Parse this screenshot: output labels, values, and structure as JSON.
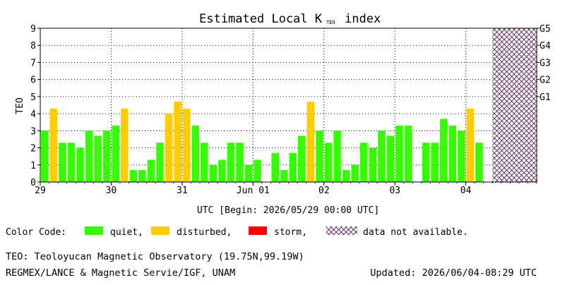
{
  "chart_data": {
    "type": "bar",
    "title": "Estimated Local K",
    "title_subscript": "TEO",
    "title_suffix": "index",
    "ylabel": "TEO",
    "xlabel": "UTC [Begin: 2026/05/29 00:00 UTC]",
    "ylim": [
      0,
      9
    ],
    "y_ticks": [
      "0",
      "1",
      "2",
      "3",
      "4",
      "5",
      "6",
      "7",
      "8",
      "9"
    ],
    "g_levels": [
      {
        "label": "G1",
        "value": 5
      },
      {
        "label": "G2",
        "value": 6
      },
      {
        "label": "G3",
        "value": 7
      },
      {
        "label": "G4",
        "value": 8
      },
      {
        "label": "G5",
        "value": 9
      }
    ],
    "x_ticks": [
      {
        "label": "29",
        "index": 0
      },
      {
        "label": "30",
        "index": 8
      },
      {
        "label": "31",
        "index": 16
      },
      {
        "label": "Jun 01",
        "index": 24
      },
      {
        "label": "02",
        "index": 32
      },
      {
        "label": "03",
        "index": 40
      },
      {
        "label": "04",
        "index": 48
      }
    ],
    "total_slots": 56,
    "values": [
      3,
      4.3,
      2.3,
      2.3,
      2,
      3,
      2.7,
      3,
      3.3,
      4.3,
      0.7,
      0.7,
      1.3,
      2.3,
      4,
      4.7,
      4.3,
      3.3,
      2.3,
      1,
      1.3,
      2.3,
      2.3,
      1,
      1.3,
      0,
      1.7,
      0.7,
      1.7,
      2.7,
      4.7,
      3,
      2.3,
      3,
      0.7,
      1,
      2.3,
      2,
      3,
      2.7,
      3.3,
      3.3,
      0,
      2.3,
      2.3,
      3.7,
      3.3,
      3,
      4.3,
      2.3
    ],
    "status": [
      "quiet",
      "disturbed",
      "quiet",
      "quiet",
      "quiet",
      "quiet",
      "quiet",
      "quiet",
      "quiet",
      "disturbed",
      "quiet",
      "quiet",
      "quiet",
      "quiet",
      "disturbed",
      "disturbed",
      "disturbed",
      "quiet",
      "quiet",
      "quiet",
      "quiet",
      "quiet",
      "quiet",
      "quiet",
      "quiet",
      "quiet",
      "quiet",
      "quiet",
      "quiet",
      "quiet",
      "disturbed",
      "quiet",
      "quiet",
      "quiet",
      "quiet",
      "quiet",
      "quiet",
      "quiet",
      "quiet",
      "quiet",
      "quiet",
      "quiet",
      "quiet",
      "quiet",
      "quiet",
      "quiet",
      "quiet",
      "quiet",
      "disturbed",
      "quiet"
    ],
    "no_data_from_index": 51,
    "colors": {
      "quiet": "#33ff00",
      "disturbed": "#ffcc00",
      "storm": "#ff0000",
      "no_data": "#663366"
    },
    "grid": true
  },
  "legend": {
    "caption": "Color Code:",
    "quiet": "quiet,",
    "disturbed": "disturbed,",
    "storm": "storm,",
    "no_data": "data not available."
  },
  "footer": {
    "station": "TEO: Teoloyucan Magnetic Observatory (19.75N,99.19W)",
    "institution": "REGMEX/LANCE & Magnetic Servie/IGF, UNAM",
    "updated": "Updated: 2026/06/04-08:29 UTC"
  }
}
